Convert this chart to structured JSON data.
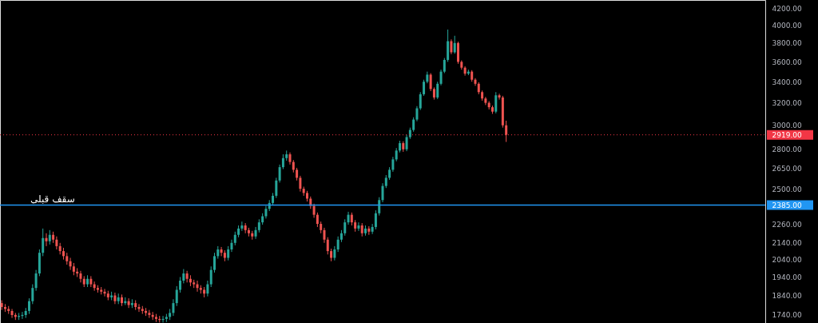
{
  "chart_data": {
    "type": "candlestick",
    "categories": [
      null,
      null,
      null,
      null,
      null,
      null,
      null,
      null,
      null,
      null,
      null,
      null,
      null,
      null,
      null,
      null,
      null,
      null,
      null,
      null,
      null,
      null,
      null,
      null,
      null,
      null,
      null,
      null,
      null,
      null,
      null,
      null,
      null,
      null,
      null,
      null,
      null,
      null,
      null,
      null,
      null,
      null,
      null,
      null,
      null,
      null,
      null,
      null,
      null,
      null,
      null,
      null,
      null,
      null,
      null,
      null,
      null,
      null,
      null,
      null,
      null,
      null,
      null,
      null,
      null,
      null,
      null,
      null,
      null,
      null,
      null,
      null,
      null,
      null,
      null,
      null,
      null,
      null,
      null,
      null,
      null,
      null,
      null,
      null,
      null,
      null,
      null,
      null,
      null,
      null,
      null,
      null,
      null,
      null,
      null,
      null,
      null,
      null,
      null,
      null,
      null,
      null,
      null,
      null,
      null,
      null,
      null,
      null,
      null,
      null,
      null,
      null,
      null,
      null,
      null,
      null,
      null,
      null,
      null,
      null,
      null,
      null,
      null,
      null,
      null,
      null,
      null,
      null,
      null,
      null,
      null,
      null,
      null,
      null,
      null,
      null,
      null,
      null,
      null,
      null,
      null,
      null,
      null,
      null,
      null,
      null,
      null,
      null,
      null,
      null,
      null,
      null,
      null,
      null,
      null,
      null,
      null,
      null,
      null,
      null,
      null,
      null,
      null,
      null,
      null,
      null,
      null,
      null,
      null,
      null,
      null,
      null,
      null,
      null,
      null,
      null,
      null,
      null,
      null,
      null,
      null,
      null,
      null,
      null,
      null,
      null,
      null,
      null,
      null,
      null,
      null,
      null,
      null,
      null,
      null,
      null,
      null,
      null,
      null,
      null,
      null,
      null,
      null,
      null,
      null,
      null,
      null,
      null,
      null,
      null,
      null,
      null,
      null,
      null,
      null,
      null,
      null,
      null,
      null,
      null,
      null,
      null,
      null
    ],
    "ohlc": [
      [
        1800,
        1815,
        1765,
        1780
      ],
      [
        1780,
        1795,
        1755,
        1770
      ],
      [
        1770,
        1785,
        1745,
        1760
      ],
      [
        1760,
        1770,
        1725,
        1740
      ],
      [
        1740,
        1750,
        1715,
        1730
      ],
      [
        1730,
        1750,
        1715,
        1735
      ],
      [
        1735,
        1755,
        1720,
        1740
      ],
      [
        1740,
        1775,
        1725,
        1760
      ],
      [
        1760,
        1825,
        1745,
        1810
      ],
      [
        1810,
        1900,
        1795,
        1880
      ],
      [
        1880,
        1980,
        1865,
        1960
      ],
      [
        1960,
        2100,
        1945,
        2080
      ],
      [
        2080,
        2230,
        2060,
        2170
      ],
      [
        2170,
        2200,
        2120,
        2150
      ],
      [
        2150,
        2220,
        2130,
        2190
      ],
      [
        2190,
        2210,
        2140,
        2160
      ],
      [
        2160,
        2180,
        2100,
        2120
      ],
      [
        2120,
        2140,
        2070,
        2090
      ],
      [
        2090,
        2110,
        2040,
        2060
      ],
      [
        2060,
        2080,
        2010,
        2030
      ],
      [
        2030,
        2050,
        1980,
        2000
      ],
      [
        2000,
        2020,
        1950,
        1970
      ],
      [
        1970,
        1990,
        1940,
        1960
      ],
      [
        1960,
        1975,
        1910,
        1930
      ],
      [
        1930,
        1945,
        1885,
        1900
      ],
      [
        1900,
        1950,
        1885,
        1930
      ],
      [
        1930,
        1945,
        1885,
        1900
      ],
      [
        1900,
        1915,
        1865,
        1880
      ],
      [
        1880,
        1895,
        1855,
        1870
      ],
      [
        1870,
        1885,
        1845,
        1860
      ],
      [
        1860,
        1875,
        1835,
        1850
      ],
      [
        1850,
        1865,
        1815,
        1830
      ],
      [
        1830,
        1860,
        1815,
        1840
      ],
      [
        1840,
        1855,
        1795,
        1810
      ],
      [
        1810,
        1850,
        1795,
        1830
      ],
      [
        1830,
        1845,
        1785,
        1800
      ],
      [
        1800,
        1830,
        1790,
        1810
      ],
      [
        1810,
        1825,
        1775,
        1790
      ],
      [
        1790,
        1820,
        1775,
        1800
      ],
      [
        1800,
        1815,
        1765,
        1780
      ],
      [
        1780,
        1795,
        1755,
        1770
      ],
      [
        1770,
        1785,
        1745,
        1760
      ],
      [
        1760,
        1775,
        1735,
        1750
      ],
      [
        1750,
        1765,
        1725,
        1740
      ],
      [
        1740,
        1755,
        1715,
        1730
      ],
      [
        1730,
        1745,
        1705,
        1720
      ],
      [
        1720,
        1735,
        1702,
        1715
      ],
      [
        1715,
        1735,
        1702,
        1720
      ],
      [
        1720,
        1745,
        1705,
        1730
      ],
      [
        1730,
        1770,
        1715,
        1750
      ],
      [
        1750,
        1820,
        1735,
        1800
      ],
      [
        1800,
        1890,
        1785,
        1870
      ],
      [
        1870,
        1940,
        1855,
        1920
      ],
      [
        1920,
        1985,
        1905,
        1960
      ],
      [
        1960,
        1975,
        1910,
        1930
      ],
      [
        1930,
        1950,
        1890,
        1910
      ],
      [
        1910,
        1925,
        1880,
        1900
      ],
      [
        1900,
        1920,
        1860,
        1880
      ],
      [
        1880,
        1895,
        1850,
        1870
      ],
      [
        1870,
        1885,
        1830,
        1850
      ],
      [
        1850,
        1920,
        1835,
        1900
      ],
      [
        1900,
        2000,
        1885,
        1980
      ],
      [
        1980,
        2080,
        1965,
        2060
      ],
      [
        2060,
        2120,
        2045,
        2100
      ],
      [
        2100,
        2115,
        2060,
        2080
      ],
      [
        2080,
        2095,
        2030,
        2050
      ],
      [
        2050,
        2120,
        2035,
        2100
      ],
      [
        2100,
        2160,
        2085,
        2140
      ],
      [
        2140,
        2210,
        2125,
        2190
      ],
      [
        2190,
        2250,
        2175,
        2230
      ],
      [
        2230,
        2275,
        2215,
        2250
      ],
      [
        2250,
        2265,
        2200,
        2220
      ],
      [
        2220,
        2235,
        2180,
        2200
      ],
      [
        2200,
        2215,
        2160,
        2180
      ],
      [
        2180,
        2240,
        2165,
        2220
      ],
      [
        2220,
        2290,
        2205,
        2270
      ],
      [
        2270,
        2330,
        2255,
        2310
      ],
      [
        2310,
        2380,
        2295,
        2360
      ],
      [
        2360,
        2420,
        2345,
        2400
      ],
      [
        2400,
        2470,
        2385,
        2450
      ],
      [
        2450,
        2580,
        2435,
        2560
      ],
      [
        2560,
        2680,
        2545,
        2660
      ],
      [
        2660,
        2760,
        2645,
        2730
      ],
      [
        2730,
        2790,
        2710,
        2760
      ],
      [
        2760,
        2775,
        2680,
        2700
      ],
      [
        2700,
        2715,
        2620,
        2640
      ],
      [
        2640,
        2655,
        2560,
        2580
      ],
      [
        2580,
        2595,
        2480,
        2500
      ],
      [
        2500,
        2515,
        2450,
        2470
      ],
      [
        2470,
        2485,
        2410,
        2430
      ],
      [
        2430,
        2445,
        2360,
        2380
      ],
      [
        2380,
        2395,
        2300,
        2320
      ],
      [
        2320,
        2335,
        2240,
        2260
      ],
      [
        2260,
        2275,
        2200,
        2220
      ],
      [
        2220,
        2235,
        2140,
        2160
      ],
      [
        2160,
        2175,
        2070,
        2090
      ],
      [
        2090,
        2105,
        2030,
        2050
      ],
      [
        2050,
        2120,
        2035,
        2100
      ],
      [
        2100,
        2180,
        2085,
        2160
      ],
      [
        2160,
        2220,
        2145,
        2200
      ],
      [
        2200,
        2290,
        2185,
        2270
      ],
      [
        2270,
        2340,
        2255,
        2320
      ],
      [
        2320,
        2335,
        2250,
        2270
      ],
      [
        2270,
        2285,
        2210,
        2230
      ],
      [
        2230,
        2270,
        2215,
        2250
      ],
      [
        2250,
        2265,
        2180,
        2200
      ],
      [
        2200,
        2250,
        2185,
        2230
      ],
      [
        2230,
        2245,
        2190,
        2210
      ],
      [
        2210,
        2260,
        2195,
        2240
      ],
      [
        2240,
        2350,
        2225,
        2330
      ],
      [
        2330,
        2440,
        2315,
        2420
      ],
      [
        2420,
        2540,
        2405,
        2520
      ],
      [
        2520,
        2600,
        2505,
        2580
      ],
      [
        2580,
        2660,
        2565,
        2640
      ],
      [
        2640,
        2740,
        2625,
        2720
      ],
      [
        2720,
        2810,
        2705,
        2790
      ],
      [
        2790,
        2870,
        2775,
        2850
      ],
      [
        2850,
        2865,
        2780,
        2800
      ],
      [
        2800,
        2920,
        2785,
        2900
      ],
      [
        2900,
        2980,
        2885,
        2960
      ],
      [
        2960,
        3070,
        2945,
        3050
      ],
      [
        3050,
        3170,
        3035,
        3150
      ],
      [
        3150,
        3300,
        3135,
        3280
      ],
      [
        3280,
        3420,
        3265,
        3400
      ],
      [
        3400,
        3500,
        3385,
        3470
      ],
      [
        3470,
        3485,
        3310,
        3330
      ],
      [
        3330,
        3345,
        3230,
        3250
      ],
      [
        3250,
        3400,
        3235,
        3380
      ],
      [
        3380,
        3520,
        3365,
        3500
      ],
      [
        3500,
        3640,
        3485,
        3620
      ],
      [
        3620,
        3950,
        3600,
        3820
      ],
      [
        3820,
        3840,
        3680,
        3700
      ],
      [
        3700,
        3880,
        3685,
        3800
      ],
      [
        3800,
        3815,
        3580,
        3600
      ],
      [
        3600,
        3615,
        3520,
        3540
      ],
      [
        3540,
        3555,
        3460,
        3480
      ],
      [
        3480,
        3520,
        3465,
        3500
      ],
      [
        3500,
        3515,
        3400,
        3420
      ],
      [
        3420,
        3435,
        3360,
        3380
      ],
      [
        3380,
        3395,
        3280,
        3300
      ],
      [
        3300,
        3315,
        3220,
        3240
      ],
      [
        3240,
        3255,
        3180,
        3200
      ],
      [
        3200,
        3215,
        3140,
        3160
      ],
      [
        3160,
        3175,
        3100,
        3120
      ],
      [
        3120,
        3300,
        3105,
        3270
      ],
      [
        3270,
        3285,
        3230,
        3250
      ],
      [
        3250,
        3265,
        2980,
        3000
      ],
      [
        3000,
        3040,
        2860,
        2919
      ],
      null,
      null,
      null,
      null,
      null,
      null,
      null,
      null,
      null,
      null,
      null,
      null,
      null,
      null,
      null,
      null,
      null,
      null,
      null,
      null,
      null,
      null,
      null,
      null,
      null,
      null,
      null,
      null,
      null,
      null,
      null,
      null,
      null,
      null,
      null,
      null,
      null,
      null,
      null,
      null,
      null,
      null,
      null,
      null,
      null,
      null,
      null,
      null,
      null,
      null,
      null,
      null,
      null,
      null,
      null,
      null,
      null,
      null,
      null,
      null,
      null,
      null,
      null,
      null,
      null,
      null,
      null,
      null,
      null,
      null,
      null,
      null,
      null,
      null,
      null
    ],
    "log": "y",
    "ylim": [
      1700,
      4300
    ],
    "yticks": [
      {
        "value": 2919,
        "label": "2919.00"
      },
      {
        "value": 2385,
        "label": "2385.00"
      },
      {
        "value": 4200,
        "label": "4200.00"
      },
      {
        "value": 4000,
        "label": "4000.00"
      },
      {
        "value": 3800,
        "label": "3800.00"
      },
      {
        "value": 3600,
        "label": "3600.00"
      },
      {
        "value": 3400,
        "label": "3400.00"
      },
      {
        "value": 3200,
        "label": "3200.00"
      },
      {
        "value": 3000,
        "label": "3000.00"
      },
      {
        "value": 2800,
        "label": "2800.00"
      },
      {
        "value": 2650,
        "label": "2650.00"
      },
      {
        "value": 2500,
        "label": "2500.00"
      },
      {
        "value": 2260,
        "label": "2260.00"
      },
      {
        "value": 2140,
        "label": "2140.00"
      },
      {
        "value": 2040,
        "label": "2040.00"
      },
      {
        "value": 1940,
        "label": "1940.00"
      },
      {
        "value": 1840,
        "label": "1840.00"
      },
      {
        "value": 1740,
        "label": "1740.00"
      }
    ],
    "tick_labels": "y",
    "grid": false,
    "ref_lines": [
      {
        "axis": "y",
        "value": 2385,
        "label": "سقف قبلی",
        "color": "#2196f3",
        "line_style": "solid"
      },
      {
        "axis": "y",
        "value": 2919,
        "color": "#f23645",
        "line_style": "dotted"
      }
    ]
  }
}
